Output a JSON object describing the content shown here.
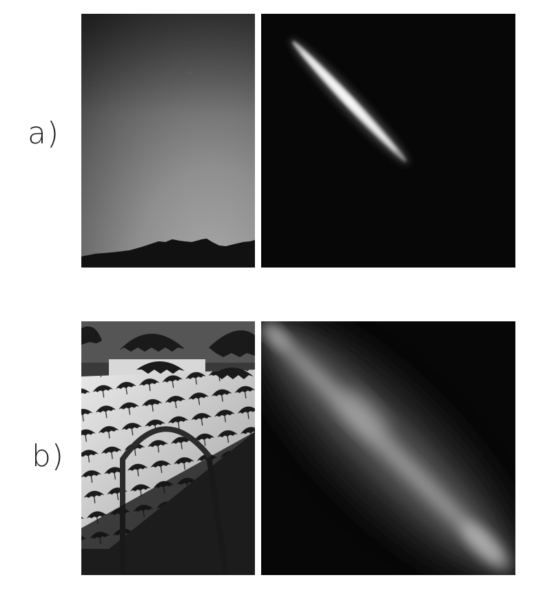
{
  "figure": {
    "rows": [
      {
        "label": "a)",
        "photo": {
          "subject": "night-sky-over-mountain-ridge-photo"
        },
        "histogram": {
          "subject": "joint-histogram-narrow-diagonal"
        }
      },
      {
        "label": "b)",
        "photo": {
          "subject": "hanging-umbrellas-over-wall-photo"
        },
        "histogram": {
          "subject": "joint-histogram-wide-diagonal"
        }
      }
    ]
  },
  "colors": {
    "background": "#ffffff",
    "label": "#222222",
    "histogram_background": "#070707"
  }
}
